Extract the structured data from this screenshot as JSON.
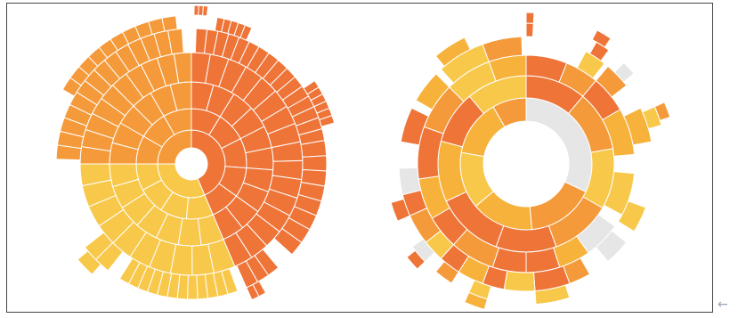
{
  "palette": {
    "dark_orange": "#EE7438",
    "orange": "#F59A3A",
    "light_orange": "#F7B23B",
    "yellow": "#F8C84A",
    "grey": "#E6E6E6",
    "separator": "#FFFFFF",
    "frame_border": "#444444"
  },
  "nav": {
    "back_arrow": "←",
    "back_arrow_icon": "arrow-left-icon"
  },
  "sunbursts": [
    {
      "name": "left-sunburst",
      "rings": [
        {
          "segments": [
            {
              "from": 0,
              "to": 157,
              "color": "dark_orange"
            },
            {
              "from": 157,
              "to": 270,
              "color": "yellow"
            },
            {
              "from": 270,
              "to": 360,
              "color": "orange"
            }
          ]
        },
        {
          "segments": [
            {
              "from": 0,
              "to": 157,
              "color": "dark_orange",
              "divisions": 5
            },
            {
              "from": 157,
              "to": 270,
              "color": "yellow",
              "divisions": 4
            },
            {
              "from": 270,
              "to": 360,
              "color": "orange",
              "divisions": 3
            }
          ]
        },
        {
          "segments": [
            {
              "from": 0,
              "to": 157,
              "color": "dark_orange",
              "divisions": 10
            },
            {
              "from": 157,
              "to": 270,
              "color": "yellow",
              "divisions": 7
            },
            {
              "from": 270,
              "to": 360,
              "color": "orange",
              "divisions": 6
            }
          ]
        },
        {
          "segments": [
            {
              "from": 0,
              "to": 157,
              "color": "dark_orange",
              "divisions": 16
            },
            {
              "from": 157,
              "to": 270,
              "color": "yellow",
              "divisions": 10
            },
            {
              "from": 270,
              "to": 360,
              "color": "orange",
              "divisions": 10
            }
          ]
        },
        {
          "segments": [
            {
              "from": 2,
              "to": 30,
              "color": "dark_orange",
              "divisions": 6
            },
            {
              "from": 30,
              "to": 80,
              "color": "dark_orange",
              "divisions": 10
            },
            {
              "from": 80,
              "to": 132,
              "color": "dark_orange",
              "divisions": 8
            },
            {
              "from": 140,
              "to": 156,
              "color": "dark_orange",
              "divisions": 3
            },
            {
              "from": 160,
              "to": 212,
              "color": "yellow",
              "divisions": 12
            },
            {
              "from": 218,
              "to": 232,
              "color": "yellow",
              "divisions": 2
            },
            {
              "from": 272,
              "to": 356,
              "color": "orange",
              "divisions": 14
            }
          ]
        },
        {
          "segments": [
            {
              "from": 10,
              "to": 24,
              "color": "dark_orange",
              "divisions": 5
            },
            {
              "from": 56,
              "to": 74,
              "color": "dark_orange",
              "divisions": 6
            },
            {
              "from": 150,
              "to": 156,
              "color": "dark_orange",
              "divisions": 2
            },
            {
              "from": 222,
              "to": 230,
              "color": "yellow",
              "divisions": 1
            },
            {
              "from": 300,
              "to": 354,
              "color": "orange",
              "divisions": 10
            }
          ]
        },
        {
          "segments": [
            {
              "from": 1,
              "to": 6,
              "color": "dark_orange",
              "divisions": 3
            }
          ]
        }
      ]
    },
    {
      "name": "right-sunburst",
      "rings": [
        {
          "segments": [
            {
              "from": 0,
              "to": 115,
              "color": "grey"
            },
            {
              "from": 115,
              "to": 175,
              "color": "orange"
            },
            {
              "from": 175,
              "to": 230,
              "color": "light_orange"
            },
            {
              "from": 230,
              "to": 280,
              "color": "yellow"
            },
            {
              "from": 280,
              "to": 330,
              "color": "light_orange"
            },
            {
              "from": 330,
              "to": 360,
              "color": "orange"
            }
          ]
        },
        {
          "segments": [
            {
              "from": 0,
              "to": 40,
              "color": "dark_orange"
            },
            {
              "from": 40,
              "to": 80,
              "color": "orange"
            },
            {
              "from": 80,
              "to": 120,
              "color": "yellow"
            },
            {
              "from": 120,
              "to": 160,
              "color": "orange"
            },
            {
              "from": 160,
              "to": 200,
              "color": "dark_orange"
            },
            {
              "from": 200,
              "to": 245,
              "color": "dark_orange"
            },
            {
              "from": 245,
              "to": 285,
              "color": "light_orange"
            },
            {
              "from": 285,
              "to": 320,
              "color": "dark_orange"
            },
            {
              "from": 320,
              "to": 360,
              "color": "yellow"
            }
          ]
        },
        {
          "segments": [
            {
              "from": 0,
              "to": 22,
              "color": "dark_orange"
            },
            {
              "from": 22,
              "to": 40,
              "color": "orange"
            },
            {
              "from": 40,
              "to": 60,
              "color": "dark_orange"
            },
            {
              "from": 60,
              "to": 85,
              "color": "light_orange"
            },
            {
              "from": 95,
              "to": 118,
              "color": "yellow"
            },
            {
              "from": 125,
              "to": 145,
              "color": "grey"
            },
            {
              "from": 145,
              "to": 162,
              "color": "light_orange"
            },
            {
              "from": 162,
              "to": 180,
              "color": "dark_orange"
            },
            {
              "from": 180,
              "to": 198,
              "color": "dark_orange"
            },
            {
              "from": 198,
              "to": 222,
              "color": "orange"
            },
            {
              "from": 222,
              "to": 240,
              "color": "dark_orange"
            },
            {
              "from": 240,
              "to": 262,
              "color": "light_orange"
            },
            {
              "from": 262,
              "to": 290,
              "color": "dark_orange"
            },
            {
              "from": 290,
              "to": 315,
              "color": "orange"
            },
            {
              "from": 315,
              "to": 340,
              "color": "yellow"
            },
            {
              "from": 340,
              "to": 360,
              "color": "light_orange"
            }
          ]
        },
        {
          "segments": [
            {
              "from": 28,
              "to": 38,
              "color": "yellow"
            },
            {
              "from": 40,
              "to": 52,
              "color": "orange"
            },
            {
              "from": 64,
              "to": 80,
              "color": "light_orange"
            },
            {
              "from": 110,
              "to": 122,
              "color": "yellow"
            },
            {
              "from": 128,
              "to": 140,
              "color": "grey"
            },
            {
              "from": 150,
              "to": 160,
              "color": "orange"
            },
            {
              "from": 160,
              "to": 176,
              "color": "dark_orange"
            },
            {
              "from": 176,
              "to": 190,
              "color": "yellow"
            },
            {
              "from": 190,
              "to": 200,
              "color": "dark_orange"
            },
            {
              "from": 200,
              "to": 212,
              "color": "light_orange"
            },
            {
              "from": 212,
              "to": 222,
              "color": "dark_orange"
            },
            {
              "from": 222,
              "to": 232,
              "color": "yellow"
            },
            {
              "from": 232,
              "to": 246,
              "color": "orange"
            },
            {
              "from": 246,
              "to": 256,
              "color": "dark_orange"
            },
            {
              "from": 256,
              "to": 268,
              "color": "grey"
            },
            {
              "from": 280,
              "to": 296,
              "color": "dark_orange"
            },
            {
              "from": 300,
              "to": 315,
              "color": "light_orange"
            },
            {
              "from": 318,
              "to": 340,
              "color": "yellow"
            },
            {
              "from": 340,
              "to": 358,
              "color": "orange"
            }
          ]
        },
        {
          "segments": [
            {
              "from": 0,
              "to": 3,
              "color": "dark_orange"
            },
            {
              "from": 30,
              "to": 36,
              "color": "dark_orange"
            },
            {
              "from": 44,
              "to": 50,
              "color": "grey"
            },
            {
              "from": 66,
              "to": 74,
              "color": "yellow"
            },
            {
              "from": 162,
              "to": 176,
              "color": "yellow"
            },
            {
              "from": 196,
              "to": 204,
              "color": "yellow"
            },
            {
              "from": 212,
              "to": 220,
              "color": "orange"
            },
            {
              "from": 226,
              "to": 234,
              "color": "grey"
            },
            {
              "from": 246,
              "to": 254,
              "color": "dark_orange"
            },
            {
              "from": 320,
              "to": 334,
              "color": "light_orange"
            }
          ]
        },
        {
          "segments": [
            {
              "from": 0,
              "to": 3,
              "color": "dark_orange"
            },
            {
              "from": 28,
              "to": 34,
              "color": "dark_orange"
            },
            {
              "from": 66,
              "to": 72,
              "color": "orange"
            },
            {
              "from": 196,
              "to": 204,
              "color": "light_orange"
            },
            {
              "from": 226,
              "to": 232,
              "color": "dark_orange"
            }
          ]
        }
      ]
    }
  ]
}
